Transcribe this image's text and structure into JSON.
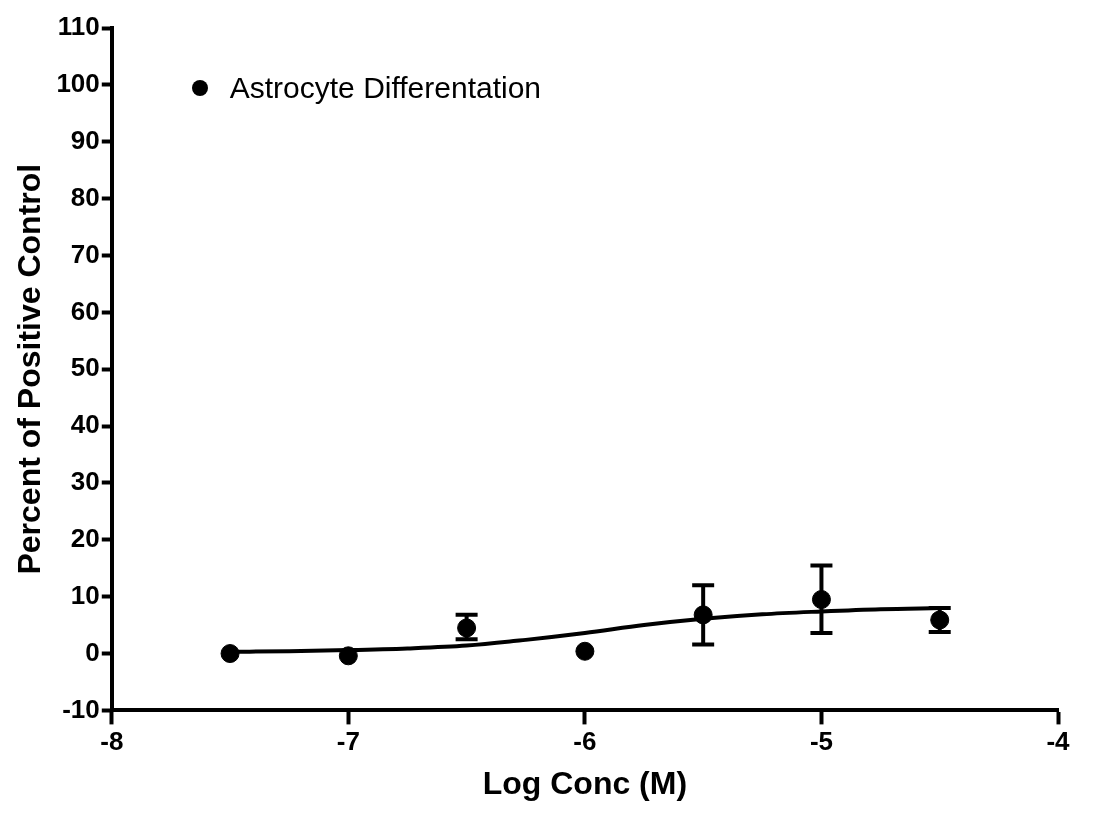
{
  "chart_data": {
    "type": "scatter",
    "xlabel": "Log Conc (M)",
    "ylabel": "Percent of Positive Control",
    "xlim": [
      -8,
      -4
    ],
    "xticks": [
      -8,
      -7,
      -6,
      -5,
      -4
    ],
    "ylim": [
      -10,
      110
    ],
    "yticks": [
      -10,
      0,
      10,
      20,
      30,
      40,
      50,
      60,
      70,
      80,
      90,
      100,
      110
    ],
    "grid": false,
    "legend": "top left",
    "marker": "circle",
    "series": [
      {
        "name": "Astrocyte Differentation",
        "color": "#000000",
        "x": [
          -7.5,
          -7,
          -6.5,
          -6,
          -5.5,
          -5,
          -4.5
        ],
        "values": [
          0,
          -0.4,
          4.5,
          0.4,
          6.8,
          9.5,
          5.9
        ],
        "errors": [
          null,
          null,
          [
            2.5,
            6.8
          ],
          null,
          [
            1.6,
            12
          ],
          [
            3.6,
            15.5
          ],
          [
            3.8,
            8.0
          ]
        ]
      },
      {
        "type": "line",
        "color": "#000000",
        "marker": "none",
        "line_style": "solid",
        "x": [
          -7.5,
          -7.25,
          -7,
          -6.75,
          -6.5,
          -6.25,
          -6,
          -5.75,
          -5.5,
          -5.25,
          -5,
          -4.75,
          -4.5
        ],
        "values": [
          0.3,
          0.4,
          0.6,
          0.9,
          1.4,
          2.4,
          3.6,
          5.0,
          6.1,
          6.9,
          7.4,
          7.8,
          8.0
        ]
      }
    ]
  }
}
